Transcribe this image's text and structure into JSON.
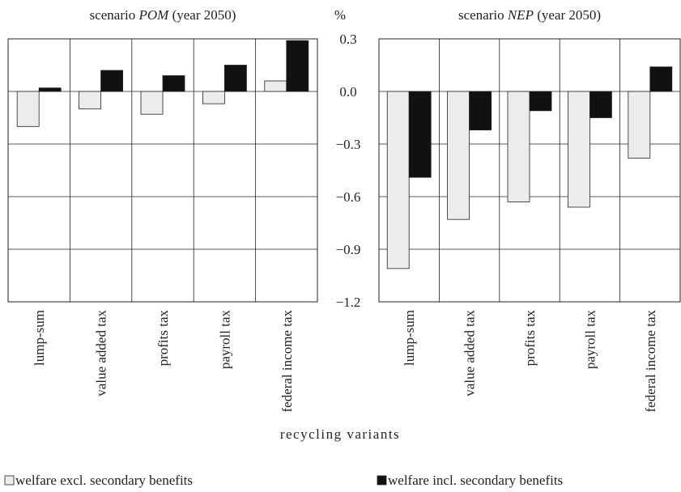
{
  "chart_data": [
    {
      "type": "bar",
      "title": {
        "prefix": "scenario",
        "name": "POM",
        "suffix": "(year 2050)"
      },
      "ylabel": "%",
      "categories": [
        "lump-sum",
        "value added tax",
        "profits tax",
        "payroll tax",
        "federal income tax"
      ],
      "series": [
        {
          "name": "welfare excl. secondary benefits",
          "color": "#ececec",
          "values": [
            -0.2,
            -0.1,
            -0.13,
            -0.07,
            0.06
          ]
        },
        {
          "name": "welfare incl. secondary benefits",
          "color": "#111111",
          "values": [
            0.02,
            0.12,
            0.09,
            0.15,
            0.29
          ]
        }
      ],
      "ylim": [
        -1.2,
        0.3
      ],
      "yticks": [
        {
          "value": 0.3,
          "label": "0.3"
        },
        {
          "value": 0,
          "label": "0.0"
        },
        {
          "value": -0.3,
          "label": "−0.3"
        },
        {
          "value": -0.6,
          "label": "−0.6"
        },
        {
          "value": -0.9,
          "label": "−0.9"
        },
        {
          "value": -1.2,
          "label": "−1.2"
        }
      ],
      "grid": true
    },
    {
      "type": "bar",
      "title": {
        "prefix": "scenario",
        "name": "NEP",
        "suffix": "(year 2050)"
      },
      "categories": [
        "lump-sum",
        "value added tax",
        "profits tax",
        "payroll tax",
        "federal income tax"
      ],
      "series": [
        {
          "color": "#ececec",
          "values": [
            -1.01,
            -0.73,
            -0.63,
            -0.66,
            -0.38
          ]
        },
        {
          "color": "#111111",
          "values": [
            -0.49,
            -0.22,
            -0.11,
            -0.15,
            0.14
          ]
        }
      ],
      "ylim": [
        -1.2,
        0.3
      ],
      "yticks": [
        0.3,
        0,
        -0.3,
        -0.6,
        -0.9,
        -1.2
      ],
      "grid": true
    }
  ],
  "x_axis_label": "recycling variants"
}
